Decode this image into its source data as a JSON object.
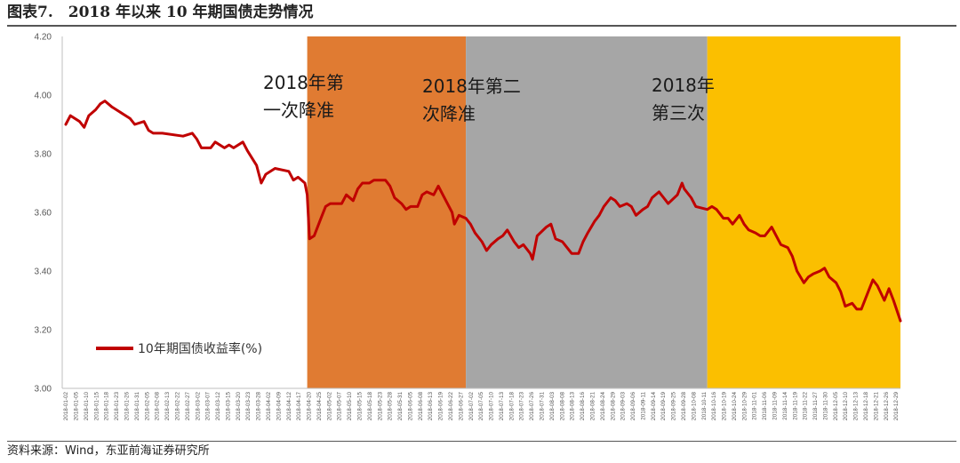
{
  "header": {
    "title": "图表7.　2018 年以来 10 年期国债走势情况"
  },
  "footer": {
    "source": "资料来源：Wind，东亚前海证券研究所"
  },
  "colors": {
    "line": "#c00000",
    "band1": "#e07b32",
    "band2": "#a6a6a6",
    "band3": "#fbbf00"
  },
  "chart_data": {
    "type": "line",
    "title": "",
    "xlabel": "",
    "ylabel": "",
    "ylim": [
      3.0,
      4.2
    ],
    "yticks": [
      "4.20",
      "4.00",
      "3.80",
      "3.60",
      "3.40",
      "3.20",
      "3.00"
    ],
    "grid": false,
    "legend": "bottom-left",
    "x_tick_labels": [
      "2018-01-02",
      "2018-01-05",
      "2018-01-10",
      "2018-01-15",
      "2018-01-18",
      "2018-01-23",
      "2018-01-26",
      "2018-01-31",
      "2018-02-05",
      "2018-02-08",
      "2018-02-13",
      "2018-02-22",
      "2018-02-27",
      "2018-03-02",
      "2018-03-07",
      "2018-03-12",
      "2018-03-15",
      "2018-03-20",
      "2018-03-23",
      "2018-03-28",
      "2018-04-02",
      "2018-04-09",
      "2018-04-12",
      "2018-04-17",
      "2018-04-20",
      "2018-04-25",
      "2018-05-02",
      "2018-05-07",
      "2018-05-10",
      "2018-05-15",
      "2018-05-18",
      "2018-05-23",
      "2018-05-28",
      "2018-05-31",
      "2018-06-05",
      "2018-06-08",
      "2018-06-13",
      "2018-06-19",
      "2018-06-22",
      "2018-06-27",
      "2018-07-02",
      "2018-07-05",
      "2018-07-10",
      "2018-07-13",
      "2018-07-18",
      "2018-07-23",
      "2018-07-26",
      "2018-07-31",
      "2018-08-03",
      "2018-08-08",
      "2018-08-13",
      "2018-08-16",
      "2018-08-21",
      "2018-08-24",
      "2018-08-29",
      "2018-09-03",
      "2018-09-06",
      "2018-09-11",
      "2018-09-14",
      "2018-09-19",
      "2018-09-25",
      "2018-09-28",
      "2018-10-08",
      "2018-10-11",
      "2018-10-16",
      "2018-10-19",
      "2018-10-24",
      "2018-10-29",
      "2018-11-01",
      "2018-11-06",
      "2018-11-09",
      "2018-11-14",
      "2018-11-19",
      "2018-11-22",
      "2018-11-27",
      "2018-11-30",
      "2018-12-05",
      "2018-12-10",
      "2018-12-13",
      "2018-12-18",
      "2018-12-21",
      "2018-12-26",
      "2018-12-29"
    ],
    "shaded_regions": [
      {
        "label": "2018年第一次降准",
        "start": "2018-04-17",
        "end": "2018-06-25",
        "color": "#e07b32"
      },
      {
        "label": "2018年第二次降准",
        "start": "2018-06-25",
        "end": "2018-10-08",
        "color": "#a6a6a6"
      },
      {
        "label": "2018年第三次",
        "start": "2018-10-08",
        "end": "2018-12-31",
        "color": "#fbbf00"
      }
    ],
    "annotations": [
      {
        "lines": [
          "2018年第",
          "一次降准"
        ]
      },
      {
        "lines": [
          "2018年第二",
          "次降准"
        ]
      },
      {
        "lines": [
          "2018年",
          "第三次"
        ]
      }
    ],
    "series": [
      {
        "name": "10年期国债收益率(%)",
        "color": "#c00000",
        "points": [
          [
            "2018-01-02",
            3.9
          ],
          [
            "2018-01-04",
            3.93
          ],
          [
            "2018-01-08",
            3.91
          ],
          [
            "2018-01-10",
            3.89
          ],
          [
            "2018-01-12",
            3.93
          ],
          [
            "2018-01-15",
            3.95
          ],
          [
            "2018-01-17",
            3.97
          ],
          [
            "2018-01-19",
            3.98
          ],
          [
            "2018-01-22",
            3.96
          ],
          [
            "2018-01-24",
            3.95
          ],
          [
            "2018-01-26",
            3.94
          ],
          [
            "2018-01-30",
            3.92
          ],
          [
            "2018-02-01",
            3.9
          ],
          [
            "2018-02-05",
            3.91
          ],
          [
            "2018-02-07",
            3.88
          ],
          [
            "2018-02-09",
            3.87
          ],
          [
            "2018-02-13",
            3.87
          ],
          [
            "2018-02-22",
            3.86
          ],
          [
            "2018-02-26",
            3.87
          ],
          [
            "2018-02-28",
            3.85
          ],
          [
            "2018-03-02",
            3.82
          ],
          [
            "2018-03-06",
            3.82
          ],
          [
            "2018-03-08",
            3.84
          ],
          [
            "2018-03-12",
            3.82
          ],
          [
            "2018-03-14",
            3.83
          ],
          [
            "2018-03-16",
            3.82
          ],
          [
            "2018-03-20",
            3.84
          ],
          [
            "2018-03-22",
            3.81
          ],
          [
            "2018-03-26",
            3.76
          ],
          [
            "2018-03-28",
            3.7
          ],
          [
            "2018-03-30",
            3.73
          ],
          [
            "2018-04-03",
            3.75
          ],
          [
            "2018-04-09",
            3.74
          ],
          [
            "2018-04-11",
            3.71
          ],
          [
            "2018-04-13",
            3.72
          ],
          [
            "2018-04-16",
            3.7
          ],
          [
            "2018-04-17",
            3.66
          ],
          [
            "2018-04-18",
            3.51
          ],
          [
            "2018-04-20",
            3.52
          ],
          [
            "2018-04-23",
            3.58
          ],
          [
            "2018-04-25",
            3.62
          ],
          [
            "2018-04-27",
            3.63
          ],
          [
            "2018-05-02",
            3.63
          ],
          [
            "2018-05-04",
            3.66
          ],
          [
            "2018-05-07",
            3.64
          ],
          [
            "2018-05-09",
            3.68
          ],
          [
            "2018-05-11",
            3.7
          ],
          [
            "2018-05-14",
            3.7
          ],
          [
            "2018-05-16",
            3.71
          ],
          [
            "2018-05-18",
            3.71
          ],
          [
            "2018-05-21",
            3.71
          ],
          [
            "2018-05-23",
            3.69
          ],
          [
            "2018-05-25",
            3.65
          ],
          [
            "2018-05-28",
            3.63
          ],
          [
            "2018-05-30",
            3.61
          ],
          [
            "2018-06-01",
            3.62
          ],
          [
            "2018-06-04",
            3.62
          ],
          [
            "2018-06-06",
            3.66
          ],
          [
            "2018-06-08",
            3.67
          ],
          [
            "2018-06-11",
            3.66
          ],
          [
            "2018-06-13",
            3.69
          ],
          [
            "2018-06-15",
            3.66
          ],
          [
            "2018-06-19",
            3.6
          ],
          [
            "2018-06-20",
            3.56
          ],
          [
            "2018-06-22",
            3.59
          ],
          [
            "2018-06-25",
            3.58
          ],
          [
            "2018-06-27",
            3.56
          ],
          [
            "2018-06-29",
            3.53
          ],
          [
            "2018-07-02",
            3.5
          ],
          [
            "2018-07-04",
            3.47
          ],
          [
            "2018-07-06",
            3.49
          ],
          [
            "2018-07-09",
            3.51
          ],
          [
            "2018-07-11",
            3.52
          ],
          [
            "2018-07-13",
            3.54
          ],
          [
            "2018-07-16",
            3.5
          ],
          [
            "2018-07-18",
            3.48
          ],
          [
            "2018-07-20",
            3.49
          ],
          [
            "2018-07-23",
            3.46
          ],
          [
            "2018-07-24",
            3.44
          ],
          [
            "2018-07-26",
            3.52
          ],
          [
            "2018-07-30",
            3.55
          ],
          [
            "2018-08-01",
            3.56
          ],
          [
            "2018-08-03",
            3.51
          ],
          [
            "2018-08-06",
            3.5
          ],
          [
            "2018-08-08",
            3.48
          ],
          [
            "2018-08-10",
            3.46
          ],
          [
            "2018-08-13",
            3.46
          ],
          [
            "2018-08-15",
            3.5
          ],
          [
            "2018-08-17",
            3.53
          ],
          [
            "2018-08-20",
            3.57
          ],
          [
            "2018-08-22",
            3.59
          ],
          [
            "2018-08-24",
            3.62
          ],
          [
            "2018-08-27",
            3.65
          ],
          [
            "2018-08-29",
            3.64
          ],
          [
            "2018-08-31",
            3.62
          ],
          [
            "2018-09-03",
            3.63
          ],
          [
            "2018-09-05",
            3.62
          ],
          [
            "2018-09-07",
            3.59
          ],
          [
            "2018-09-10",
            3.61
          ],
          [
            "2018-09-12",
            3.62
          ],
          [
            "2018-09-14",
            3.65
          ],
          [
            "2018-09-17",
            3.67
          ],
          [
            "2018-09-19",
            3.65
          ],
          [
            "2018-09-21",
            3.63
          ],
          [
            "2018-09-25",
            3.66
          ],
          [
            "2018-09-27",
            3.7
          ],
          [
            "2018-09-28",
            3.68
          ],
          [
            "2018-10-01",
            3.65
          ],
          [
            "2018-10-03",
            3.62
          ],
          [
            "2018-10-08",
            3.61
          ],
          [
            "2018-10-10",
            3.62
          ],
          [
            "2018-10-12",
            3.61
          ],
          [
            "2018-10-15",
            3.58
          ],
          [
            "2018-10-17",
            3.58
          ],
          [
            "2018-10-19",
            3.56
          ],
          [
            "2018-10-22",
            3.59
          ],
          [
            "2018-10-24",
            3.56
          ],
          [
            "2018-10-26",
            3.54
          ],
          [
            "2018-10-29",
            3.53
          ],
          [
            "2018-10-31",
            3.52
          ],
          [
            "2018-11-02",
            3.52
          ],
          [
            "2018-11-05",
            3.55
          ],
          [
            "2018-11-07",
            3.52
          ],
          [
            "2018-11-09",
            3.49
          ],
          [
            "2018-11-12",
            3.48
          ],
          [
            "2018-11-14",
            3.45
          ],
          [
            "2018-11-16",
            3.4
          ],
          [
            "2018-11-19",
            3.36
          ],
          [
            "2018-11-21",
            3.38
          ],
          [
            "2018-11-23",
            3.39
          ],
          [
            "2018-11-26",
            3.4
          ],
          [
            "2018-11-28",
            3.41
          ],
          [
            "2018-11-30",
            3.38
          ],
          [
            "2018-12-03",
            3.36
          ],
          [
            "2018-12-05",
            3.33
          ],
          [
            "2018-12-07",
            3.28
          ],
          [
            "2018-12-10",
            3.29
          ],
          [
            "2018-12-12",
            3.27
          ],
          [
            "2018-12-14",
            3.27
          ],
          [
            "2018-12-17",
            3.33
          ],
          [
            "2018-12-19",
            3.37
          ],
          [
            "2018-12-21",
            3.35
          ],
          [
            "2018-12-24",
            3.3
          ],
          [
            "2018-12-26",
            3.34
          ],
          [
            "2018-12-28",
            3.3
          ],
          [
            "2018-12-31",
            3.23
          ]
        ]
      }
    ]
  }
}
